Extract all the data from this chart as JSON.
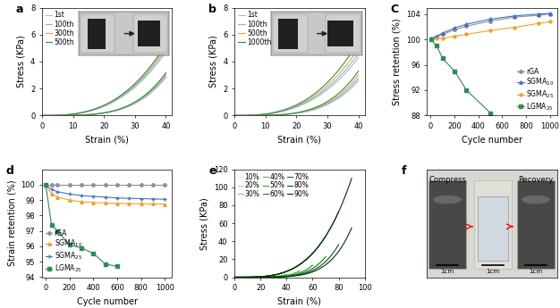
{
  "panel_a": {
    "label": "a",
    "xlabel": "Strain (%)",
    "ylabel": "Stress (KPa)",
    "ylim": [
      0,
      8
    ],
    "xlim": [
      0,
      42
    ],
    "yticks": [
      0,
      2,
      4,
      6,
      8
    ],
    "xticks": [
      0,
      10,
      20,
      30,
      40
    ],
    "curves": [
      {
        "cycle": "1st",
        "color": "#b8b8b8"
      },
      {
        "cycle": "100th",
        "color": "#5bc8e8"
      },
      {
        "cycle": "300th",
        "color": "#f0a030"
      },
      {
        "cycle": "500th",
        "color": "#2e8b57"
      }
    ],
    "max_stress": [
      4.7,
      4.9,
      5.1,
      5.3
    ]
  },
  "panel_b": {
    "label": "b",
    "xlabel": "Strain (%)",
    "ylabel": "Stress (KPa)",
    "ylim": [
      0,
      8
    ],
    "xlim": [
      0,
      42
    ],
    "yticks": [
      0,
      2,
      4,
      6,
      8
    ],
    "xticks": [
      0,
      10,
      20,
      30,
      40
    ],
    "curves": [
      {
        "cycle": "1st",
        "color": "#b8b8b8"
      },
      {
        "cycle": "100th",
        "color": "#5bc8e8"
      },
      {
        "cycle": "500th",
        "color": "#f0a030"
      },
      {
        "cycle": "1000th",
        "color": "#2e8b57"
      }
    ],
    "max_stress": [
      4.3,
      4.6,
      5.0,
      5.5
    ]
  },
  "panel_c": {
    "label": "C",
    "xlabel": "Cycle number",
    "ylabel": "Stress retention (%)",
    "ylim": [
      88,
      105
    ],
    "xlim": [
      -30,
      1060
    ],
    "yticks": [
      88,
      92,
      96,
      100,
      104
    ],
    "xticks": [
      0,
      200,
      400,
      600,
      800,
      1000
    ],
    "series": [
      {
        "name": "rGA",
        "color": "#909090",
        "marker": "o",
        "x": [
          1,
          50,
          100,
          200,
          300,
          500,
          700,
          900,
          1000
        ],
        "y": [
          100.0,
          100.4,
          100.8,
          101.5,
          102.1,
          102.9,
          103.5,
          103.8,
          104.0
        ]
      },
      {
        "name": "SGMA$_{10}$",
        "color": "#4472c4",
        "marker": "^",
        "x": [
          1,
          50,
          100,
          200,
          300,
          500,
          700,
          900,
          1000
        ],
        "y": [
          100.1,
          100.5,
          101.0,
          101.8,
          102.4,
          103.2,
          103.7,
          104.0,
          104.1
        ]
      },
      {
        "name": "SGMA$_{25}$",
        "color": "#f0a030",
        "marker": "*",
        "x": [
          1,
          50,
          100,
          200,
          300,
          500,
          700,
          900,
          1000
        ],
        "y": [
          100.0,
          100.1,
          100.2,
          100.5,
          100.8,
          101.4,
          101.9,
          102.5,
          102.8
        ]
      },
      {
        "name": "LGMA$_{25}$",
        "color": "#2e8b57",
        "marker": "s",
        "x": [
          1,
          50,
          100,
          200,
          300,
          500
        ],
        "y": [
          100.0,
          99.0,
          97.0,
          95.0,
          92.0,
          88.4
        ]
      }
    ]
  },
  "panel_d": {
    "label": "d",
    "xlabel": "Cycle number",
    "ylabel": "Strain retention (%)",
    "ylim": [
      94,
      101
    ],
    "xlim": [
      -30,
      1060
    ],
    "yticks": [
      94,
      95,
      96,
      97,
      98,
      99,
      100
    ],
    "xticks": [
      0,
      200,
      400,
      600,
      800,
      1000
    ],
    "series": [
      {
        "name": "rGA",
        "color": "#909090",
        "marker": "o",
        "x": [
          1,
          50,
          100,
          200,
          300,
          400,
          500,
          600,
          700,
          800,
          900,
          1000
        ],
        "y": [
          100.0,
          100.0,
          100.0,
          100.0,
          100.0,
          100.0,
          100.0,
          100.0,
          100.0,
          100.0,
          100.0,
          100.0
        ]
      },
      {
        "name": "SGMA$_{10}$",
        "color": "#f0a030",
        "marker": "^",
        "x": [
          1,
          50,
          100,
          200,
          300,
          400,
          500,
          600,
          700,
          800,
          900,
          1000
        ],
        "y": [
          100.0,
          99.4,
          99.2,
          99.0,
          98.9,
          98.85,
          98.82,
          98.8,
          98.78,
          98.77,
          98.76,
          98.75
        ]
      },
      {
        "name": "SGMA$_{25}$",
        "color": "#4472c4",
        "marker": "+",
        "x": [
          1,
          50,
          100,
          200,
          300,
          400,
          500,
          600,
          700,
          800,
          900,
          1000
        ],
        "y": [
          100.0,
          99.7,
          99.55,
          99.4,
          99.3,
          99.25,
          99.2,
          99.15,
          99.12,
          99.1,
          99.08,
          99.06
        ]
      },
      {
        "name": "LGMA$_{25}$",
        "color": "#2e8b57",
        "marker": "s",
        "x": [
          1,
          50,
          100,
          200,
          300,
          400,
          500,
          600
        ],
        "y": [
          100.0,
          97.4,
          97.0,
          96.1,
          95.9,
          95.55,
          94.85,
          94.7
        ]
      }
    ]
  },
  "panel_e": {
    "label": "e",
    "xlabel": "Strain (%)",
    "ylabel": "Stress (KPa)",
    "ylim": [
      0,
      120
    ],
    "xlim": [
      0,
      100
    ],
    "yticks": [
      0,
      20,
      40,
      60,
      80,
      100,
      120
    ],
    "xticks": [
      0,
      20,
      40,
      60,
      80,
      100
    ],
    "strains": [
      10,
      20,
      30,
      40,
      50,
      60,
      70,
      80,
      90
    ],
    "colors": [
      "#c8eec8",
      "#a0dca0",
      "#78cc78",
      "#50b850",
      "#38a438",
      "#208c20",
      "#187018",
      "#0e500e",
      "#083008"
    ],
    "legend_items": [
      "10%",
      "20%",
      "30%",
      "40%",
      "50%",
      "60%",
      "70%",
      "80%",
      "90%"
    ]
  },
  "panel_f_label": "f",
  "bg_color": "#ffffff",
  "panel_label_fontsize": 9,
  "axis_fontsize": 7,
  "tick_fontsize": 6,
  "legend_fontsize": 5.5
}
